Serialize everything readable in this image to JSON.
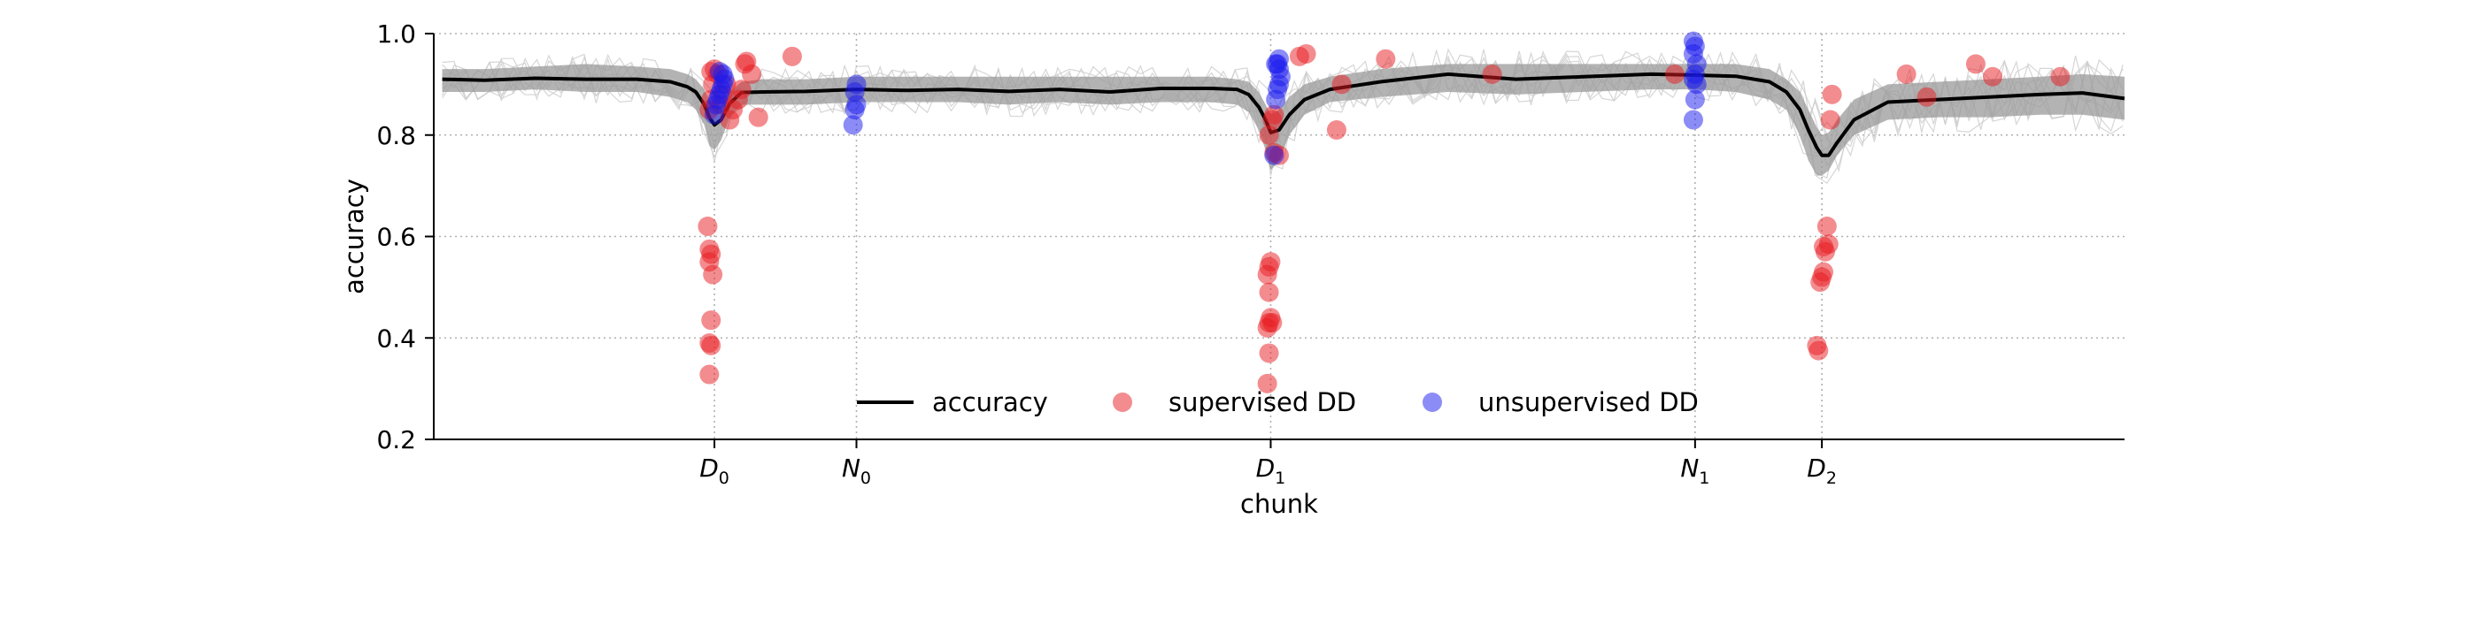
{
  "chart_data": {
    "type": "line",
    "title": "",
    "xlabel": "chunk",
    "ylabel": "accuracy",
    "xlim": [
      0,
      1000
    ],
    "ylim": [
      0.2,
      1.0
    ],
    "grid": true,
    "legend_position": "lower-center",
    "y_ticks": [
      0.2,
      0.4,
      0.6,
      0.8,
      1.0
    ],
    "y_tick_labels": [
      "0.2",
      "0.4",
      "0.6",
      "0.8",
      "1.0"
    ],
    "x_ticks": [
      {
        "x": 166,
        "base": "D",
        "sub": "0"
      },
      {
        "x": 250,
        "base": "N",
        "sub": "0"
      },
      {
        "x": 495,
        "base": "D",
        "sub": "1"
      },
      {
        "x": 746,
        "base": "N",
        "sub": "1"
      },
      {
        "x": 821,
        "base": "D",
        "sub": "2"
      }
    ],
    "colors": {
      "accuracy": "#000000",
      "band": "#999999",
      "runs": "#cccccc",
      "supervised": "#e8191f",
      "unsupervised": "#1a1aee",
      "grid": "#b0b0b0"
    },
    "series": [
      {
        "name": "accuracy",
        "type": "line",
        "x": [
          5,
          30,
          60,
          90,
          120,
          140,
          150,
          155,
          160,
          163,
          166,
          170,
          175,
          182,
          195,
          220,
          250,
          280,
          310,
          340,
          370,
          400,
          430,
          460,
          475,
          482,
          488,
          492,
          495,
          500,
          506,
          515,
          530,
          560,
          600,
          640,
          680,
          720,
          746,
          770,
          790,
          800,
          808,
          813,
          818,
          821,
          825,
          830,
          840,
          860,
          890,
          920,
          950,
          975,
          1000
        ],
        "y": [
          0.91,
          0.908,
          0.912,
          0.91,
          0.91,
          0.905,
          0.895,
          0.885,
          0.86,
          0.835,
          0.82,
          0.83,
          0.862,
          0.884,
          0.885,
          0.886,
          0.89,
          0.888,
          0.89,
          0.886,
          0.89,
          0.885,
          0.892,
          0.892,
          0.89,
          0.88,
          0.855,
          0.83,
          0.805,
          0.81,
          0.84,
          0.87,
          0.89,
          0.905,
          0.92,
          0.91,
          0.915,
          0.92,
          0.918,
          0.916,
          0.905,
          0.885,
          0.85,
          0.81,
          0.775,
          0.76,
          0.76,
          0.785,
          0.83,
          0.865,
          0.87,
          0.875,
          0.88,
          0.883,
          0.872
        ],
        "band_upper": [
          0.93,
          0.93,
          0.935,
          0.94,
          0.935,
          0.93,
          0.92,
          0.91,
          0.89,
          0.87,
          0.85,
          0.86,
          0.885,
          0.905,
          0.91,
          0.91,
          0.915,
          0.915,
          0.915,
          0.915,
          0.915,
          0.915,
          0.915,
          0.915,
          0.91,
          0.905,
          0.885,
          0.86,
          0.84,
          0.85,
          0.875,
          0.9,
          0.915,
          0.93,
          0.94,
          0.94,
          0.94,
          0.94,
          0.94,
          0.94,
          0.93,
          0.91,
          0.885,
          0.85,
          0.815,
          0.8,
          0.805,
          0.83,
          0.87,
          0.9,
          0.905,
          0.91,
          0.915,
          0.92,
          0.915
        ],
        "band_lower": [
          0.885,
          0.885,
          0.89,
          0.885,
          0.885,
          0.875,
          0.865,
          0.85,
          0.82,
          0.78,
          0.77,
          0.79,
          0.835,
          0.86,
          0.86,
          0.86,
          0.865,
          0.865,
          0.865,
          0.86,
          0.865,
          0.86,
          0.865,
          0.865,
          0.86,
          0.845,
          0.81,
          0.77,
          0.73,
          0.75,
          0.8,
          0.84,
          0.865,
          0.875,
          0.885,
          0.88,
          0.885,
          0.89,
          0.89,
          0.885,
          0.87,
          0.85,
          0.8,
          0.75,
          0.72,
          0.72,
          0.73,
          0.76,
          0.8,
          0.83,
          0.835,
          0.835,
          0.84,
          0.84,
          0.83
        ]
      },
      {
        "name": "supervised DD",
        "type": "scatter",
        "x": [
          163,
          164,
          163,
          164,
          165,
          163,
          164,
          163,
          162,
          163,
          164,
          165,
          164,
          166,
          168,
          170,
          171,
          173,
          175,
          177,
          180,
          182,
          184,
          185,
          188,
          192,
          212,
          493,
          494,
          493,
          494,
          495,
          494,
          493,
          494,
          495,
          496,
          497,
          494,
          496,
          497,
          500,
          512,
          516,
          534,
          537,
          563,
          626,
          734,
          818,
          819,
          820,
          821,
          822,
          823,
          824,
          822,
          825,
          826,
          827,
          871,
          883,
          912,
          922,
          962
        ],
        "y": [
          0.328,
          0.385,
          0.39,
          0.435,
          0.525,
          0.55,
          0.565,
          0.575,
          0.62,
          0.85,
          0.87,
          0.9,
          0.925,
          0.93,
          0.92,
          0.86,
          0.88,
          0.9,
          0.83,
          0.85,
          0.87,
          0.89,
          0.94,
          0.945,
          0.92,
          0.835,
          0.955,
          0.31,
          0.37,
          0.42,
          0.43,
          0.44,
          0.49,
          0.525,
          0.54,
          0.55,
          0.43,
          0.84,
          0.8,
          0.83,
          0.765,
          0.76,
          0.955,
          0.96,
          0.81,
          0.9,
          0.95,
          0.92,
          0.92,
          0.385,
          0.375,
          0.51,
          0.52,
          0.53,
          0.57,
          0.62,
          0.58,
          0.585,
          0.83,
          0.88,
          0.92,
          0.875,
          0.94,
          0.915,
          0.915
        ]
      },
      {
        "name": "unsupervised DD",
        "type": "scatter",
        "x": [
          166,
          167,
          168,
          169,
          170,
          171,
          172,
          171,
          169,
          248,
          249,
          250,
          249,
          250,
          497,
          498,
          499,
          500,
          501,
          500,
          499,
          500,
          498,
          745,
          746,
          747,
          745,
          746,
          747,
          745,
          746,
          745
        ],
        "y": [
          0.84,
          0.86,
          0.87,
          0.88,
          0.89,
          0.9,
          0.91,
          0.92,
          0.925,
          0.82,
          0.85,
          0.86,
          0.885,
          0.9,
          0.76,
          0.87,
          0.89,
          0.9,
          0.915,
          0.93,
          0.94,
          0.95,
          0.94,
          0.83,
          0.87,
          0.9,
          0.91,
          0.92,
          0.94,
          0.96,
          0.975,
          0.985
        ]
      }
    ]
  }
}
